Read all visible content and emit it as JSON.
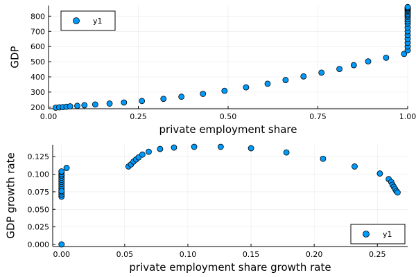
{
  "chart_data": [
    {
      "type": "scatter",
      "xlabel": "private employment share",
      "ylabel": "GDP",
      "xlim": [
        0.0,
        1.0
      ],
      "ylim": [
        190,
        870
      ],
      "x_ticks": [
        0.0,
        0.25,
        0.5,
        0.75,
        1.0
      ],
      "x_tick_labels": [
        "0.00",
        "0.25",
        "0.50",
        "0.75",
        "1.00"
      ],
      "y_ticks": [
        200,
        300,
        400,
        500,
        600,
        700,
        800
      ],
      "y_tick_labels": [
        "200",
        "300",
        "400",
        "500",
        "600",
        "700",
        "800"
      ],
      "grid": true,
      "legend_position": "top-left",
      "series": [
        {
          "name": "y1",
          "color": "#009AFA",
          "x": [
            0.02,
            0.03,
            0.04,
            0.05,
            0.06,
            0.08,
            0.1,
            0.13,
            0.17,
            0.21,
            0.26,
            0.32,
            0.37,
            0.43,
            0.49,
            0.55,
            0.61,
            0.66,
            0.71,
            0.76,
            0.81,
            0.85,
            0.89,
            0.94,
            0.99,
            1.0,
            1.0,
            1.0,
            1.0,
            1.0,
            1.0,
            1.0,
            1.0,
            1.0,
            1.0,
            1.0,
            1.0,
            1.0,
            1.0,
            1.0,
            1.0,
            1.0,
            1.0,
            1.0
          ],
          "y": [
            197,
            199,
            201,
            203,
            206,
            209,
            213,
            218,
            224,
            231,
            241,
            255,
            269,
            288,
            308,
            331,
            355,
            379,
            403,
            428,
            452,
            477,
            502,
            526,
            551,
            575,
            600,
            625,
            650,
            675,
            700,
            725,
            750,
            765,
            780,
            795,
            805,
            815,
            825,
            835,
            843,
            850,
            855,
            860
          ]
        }
      ]
    },
    {
      "type": "scatter",
      "xlabel": "private employment share growth rate",
      "ylabel": "GDP growth rate",
      "xlim": [
        -0.007,
        0.274
      ],
      "ylim": [
        -0.003,
        0.142
      ],
      "x_ticks": [
        0.0,
        0.05,
        0.1,
        0.15,
        0.2,
        0.25
      ],
      "x_tick_labels": [
        "0.00",
        "0.05",
        "0.10",
        "0.15",
        "0.20",
        "0.25"
      ],
      "y_ticks": [
        0.0,
        0.025,
        0.05,
        0.075,
        0.1,
        0.125
      ],
      "y_tick_labels": [
        "0.000",
        "0.025",
        "0.050",
        "0.075",
        "0.100",
        "0.125"
      ],
      "grid": true,
      "legend_position": "bottom-right",
      "series": [
        {
          "name": "y1",
          "color": "#009AFA",
          "x": [
            0.0,
            0.0,
            0.0,
            0.0,
            0.0,
            0.0,
            0.0,
            0.0,
            0.0,
            0.0,
            0.0,
            0.0,
            0.0,
            0.0,
            0.0,
            0.0,
            0.004,
            0.053,
            0.055,
            0.057,
            0.059,
            0.061,
            0.064,
            0.069,
            0.078,
            0.089,
            0.105,
            0.126,
            0.15,
            0.178,
            0.207,
            0.232,
            0.252,
            0.259,
            0.261,
            0.262,
            0.263,
            0.264,
            0.265,
            0.266
          ],
          "y": [
            0.0,
            0.068,
            0.071,
            0.074,
            0.077,
            0.08,
            0.083,
            0.086,
            0.089,
            0.092,
            0.095,
            0.098,
            0.1,
            0.103,
            0.104,
            0.076,
            0.109,
            0.111,
            0.114,
            0.118,
            0.121,
            0.124,
            0.128,
            0.132,
            0.136,
            0.138,
            0.139,
            0.139,
            0.137,
            0.131,
            0.122,
            0.111,
            0.101,
            0.093,
            0.089,
            0.085,
            0.082,
            0.079,
            0.076,
            0.074
          ]
        }
      ]
    }
  ]
}
